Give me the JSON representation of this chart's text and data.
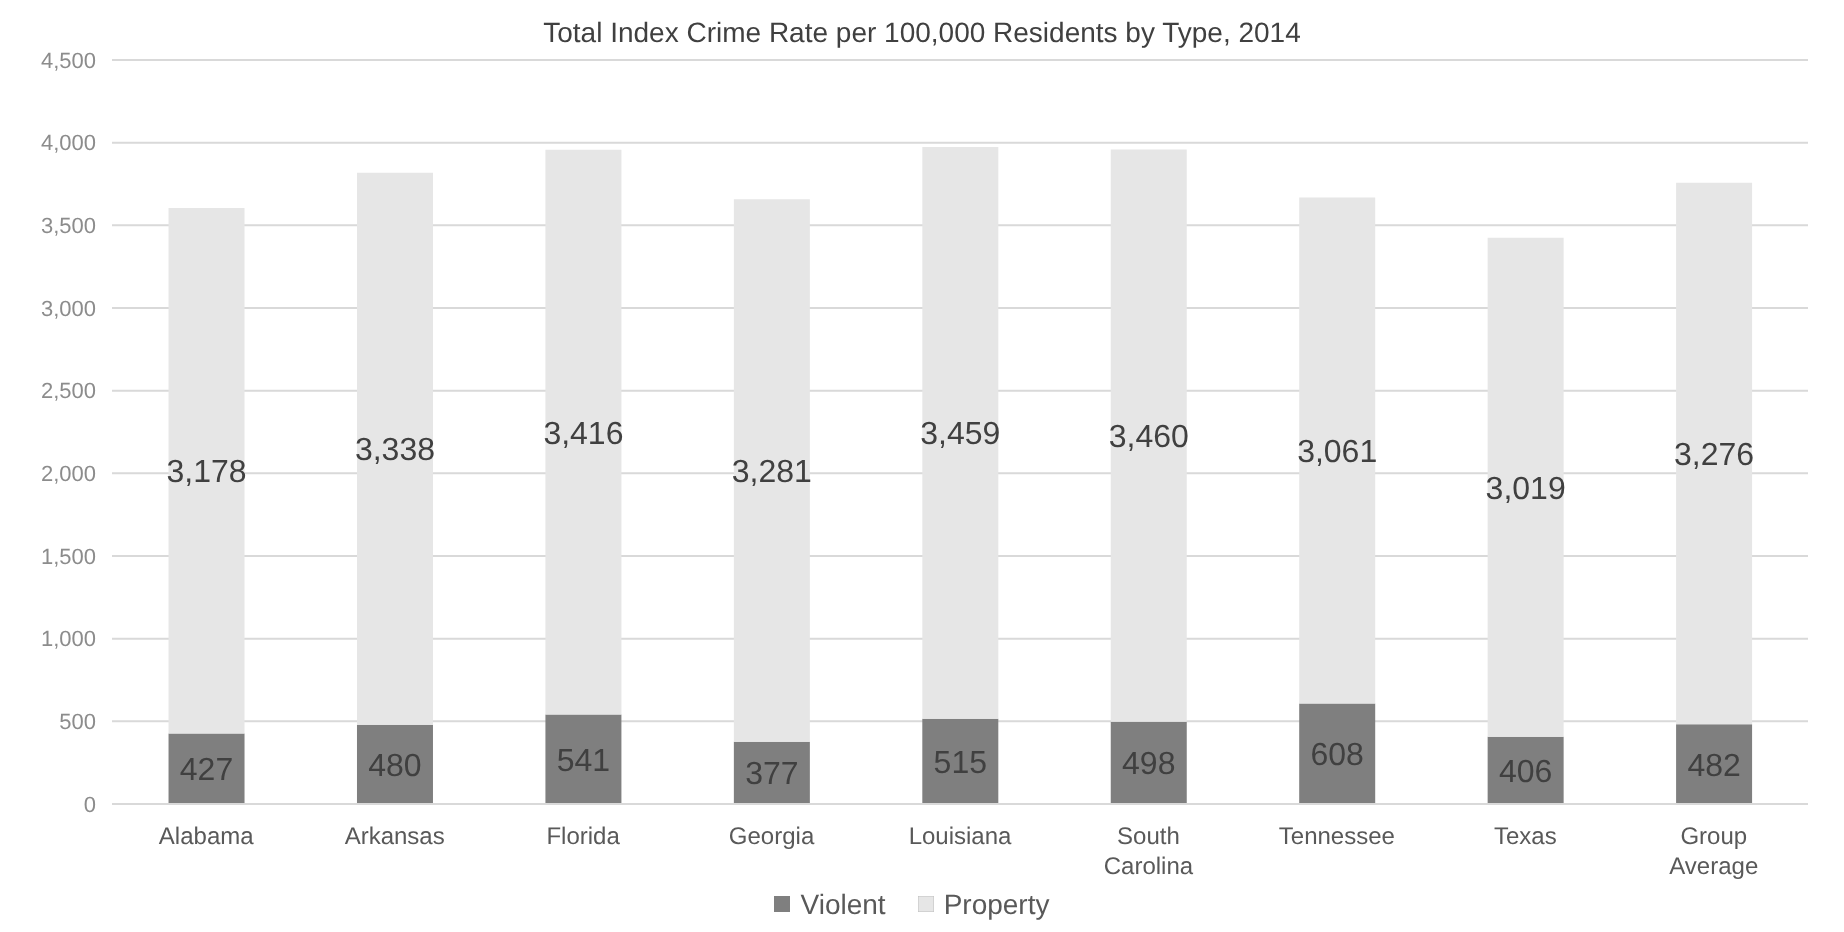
{
  "chart_data": {
    "type": "bar",
    "title": "Total Index Crime Rate per 100,000 Residents by Type, 2014",
    "categories": [
      "Alabama",
      "Arkansas",
      "Florida",
      "Georgia",
      "Louisiana",
      "South Carolina",
      "Tennessee",
      "Texas",
      "Group Average"
    ],
    "series": [
      {
        "name": "Violent",
        "color": "#7f7f7f",
        "values": [
          427,
          480,
          541,
          377,
          515,
          498,
          608,
          406,
          482
        ]
      },
      {
        "name": "Property",
        "color": "#e6e6e6",
        "values": [
          3178,
          3338,
          3416,
          3281,
          3459,
          3460,
          3061,
          3019,
          3276
        ],
        "value_labels": [
          "3,178",
          "3,338",
          "3,416",
          "3,281",
          "3,459",
          "3,460",
          "3,061",
          "3,019",
          "3,276"
        ]
      }
    ],
    "stacked": true,
    "data_labels": true,
    "ylim": [
      0,
      4500
    ],
    "yticks": [
      0,
      500,
      {
        "value": 1000,
        "label": "1,000"
      },
      {
        "value": 1500,
        "label": "1,500"
      },
      {
        "value": 2000,
        "label": "2,000"
      },
      {
        "value": 2500,
        "label": "2,500"
      },
      {
        "value": 3000,
        "label": "3,000"
      },
      {
        "value": 3500,
        "label": "3,500"
      },
      {
        "value": 4000,
        "label": "4,000"
      },
      {
        "value": 4500,
        "label": "4,500"
      }
    ],
    "grid": "y",
    "legend": "bottom"
  }
}
